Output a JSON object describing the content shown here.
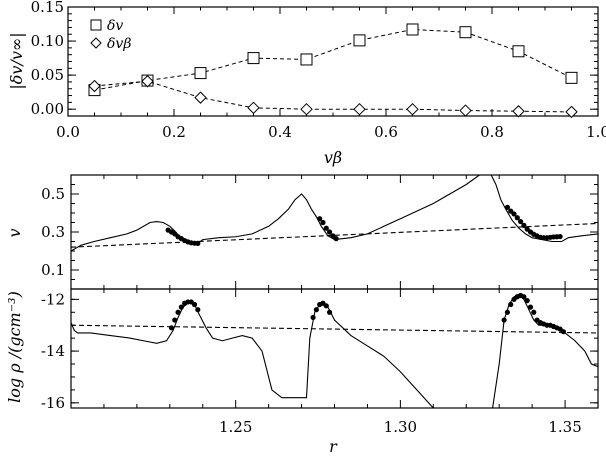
{
  "chart_data": [
    {
      "type": "scatter",
      "panel": "top",
      "xlabel": "vβ",
      "ylabel": "|δv/v∞|",
      "xlim": [
        0.0,
        1.0
      ],
      "ylim": [
        -0.01,
        0.15
      ],
      "x_ticks": [
        0.0,
        0.2,
        0.4,
        0.6,
        0.8,
        1.0
      ],
      "x_tick_labels": [
        "0.0",
        "0.2",
        "0.4",
        "0.6",
        "0.8",
        "1.0"
      ],
      "y_ticks": [
        0.0,
        0.05,
        0.1,
        0.15
      ],
      "y_tick_labels": [
        "0.00",
        "0.05",
        "0.10",
        "0.15"
      ],
      "legend_position": "top-left",
      "series": [
        {
          "name": "δv",
          "marker": "square",
          "line": "dashed",
          "x": [
            0.05,
            0.15,
            0.25,
            0.35,
            0.45,
            0.55,
            0.65,
            0.75,
            0.85,
            0.95
          ],
          "y": [
            0.028,
            0.042,
            0.053,
            0.075,
            0.073,
            0.101,
            0.117,
            0.113,
            0.085,
            0.046
          ]
        },
        {
          "name": "δvβ",
          "marker": "diamond",
          "line": "dashed",
          "x": [
            0.05,
            0.15,
            0.25,
            0.35,
            0.45,
            0.55,
            0.65,
            0.75,
            0.85,
            0.95
          ],
          "y": [
            0.034,
            0.041,
            0.017,
            0.002,
            0.0,
            0.0,
            0.0,
            -0.002,
            -0.003,
            -0.004
          ]
        }
      ]
    },
    {
      "type": "line",
      "panel": "middle",
      "xlabel": "",
      "ylabel": "v",
      "xlim": [
        1.2,
        1.36
      ],
      "ylim": [
        0.0,
        0.6
      ],
      "y_ticks": [
        0.1,
        0.3,
        0.5
      ],
      "y_tick_labels": [
        "0.1",
        "0.3",
        "0.5"
      ],
      "series": [
        {
          "style": "solid",
          "x": [
            1.2,
            1.203,
            1.207,
            1.212,
            1.217,
            1.22,
            1.224,
            1.226,
            1.228,
            1.23,
            1.2315,
            1.233,
            1.235,
            1.237,
            1.2385,
            1.24,
            1.245,
            1.25,
            1.255,
            1.26,
            1.263,
            1.266,
            1.268,
            1.27,
            1.2715,
            1.273,
            1.2745,
            1.276,
            1.278,
            1.28,
            1.285,
            1.29,
            1.295,
            1.3,
            1.305,
            1.31,
            1.315,
            1.32,
            1.324,
            1.327,
            1.329,
            1.3305,
            1.332,
            1.334,
            1.336,
            1.338,
            1.34,
            1.343,
            1.346,
            1.349,
            1.351,
            1.355,
            1.36
          ],
          "y": [
            0.2,
            0.23,
            0.25,
            0.27,
            0.29,
            0.31,
            0.35,
            0.355,
            0.35,
            0.33,
            0.305,
            0.275,
            0.25,
            0.24,
            0.24,
            0.26,
            0.27,
            0.275,
            0.29,
            0.33,
            0.37,
            0.42,
            0.47,
            0.5,
            0.47,
            0.42,
            0.38,
            0.33,
            0.28,
            0.26,
            0.27,
            0.29,
            0.33,
            0.37,
            0.41,
            0.45,
            0.5,
            0.55,
            0.6,
            0.62,
            0.55,
            0.47,
            0.42,
            0.36,
            0.32,
            0.29,
            0.27,
            0.26,
            0.25,
            0.25,
            0.27,
            0.28,
            0.29
          ]
        },
        {
          "style": "dashed",
          "x": [
            1.2,
            1.36
          ],
          "y": [
            0.22,
            0.345
          ]
        }
      ],
      "markers": [
        {
          "x": [
            1.2295,
            1.2305,
            1.2315,
            1.2325,
            1.2335,
            1.2345,
            1.2355,
            1.2365,
            1.2375,
            1.2385
          ],
          "y": [
            0.31,
            0.3,
            0.29,
            0.275,
            0.265,
            0.255,
            0.248,
            0.243,
            0.241,
            0.24
          ]
        },
        {
          "x": [
            1.2755,
            1.2765,
            1.2775,
            1.2785,
            1.2795,
            1.2805
          ],
          "y": [
            0.37,
            0.35,
            0.32,
            0.3,
            0.28,
            0.265
          ]
        },
        {
          "x": [
            1.3325,
            1.3335,
            1.3345,
            1.3355,
            1.3365,
            1.3375,
            1.3385,
            1.3395,
            1.3405,
            1.3415,
            1.3425,
            1.3435,
            1.3445,
            1.3455,
            1.3465,
            1.3475,
            1.3485
          ],
          "y": [
            0.43,
            0.41,
            0.395,
            0.375,
            0.355,
            0.335,
            0.315,
            0.3,
            0.288,
            0.28,
            0.272,
            0.27,
            0.27,
            0.272,
            0.274,
            0.275,
            0.276
          ]
        }
      ]
    },
    {
      "type": "line",
      "panel": "bottom",
      "xlabel": "r",
      "ylabel": "log ρ /(gcm⁻³)",
      "xlim": [
        1.2,
        1.36
      ],
      "ylim": [
        -16.2,
        -11.6
      ],
      "x_ticks": [
        1.25,
        1.3,
        1.35
      ],
      "x_tick_labels": [
        "1.25",
        "1.30",
        "1.35"
      ],
      "y_ticks": [
        -16,
        -14,
        -12
      ],
      "y_tick_labels": [
        "-16",
        "-14",
        "-12"
      ],
      "series": [
        {
          "style": "solid",
          "x": [
            1.2,
            1.201,
            1.202,
            1.206,
            1.212,
            1.218,
            1.222,
            1.226,
            1.229,
            1.231,
            1.2325,
            1.234,
            1.236,
            1.2375,
            1.239,
            1.241,
            1.243,
            1.246,
            1.249,
            1.252,
            1.255,
            1.258,
            1.261,
            1.264,
            1.267,
            1.2715,
            1.2725,
            1.274,
            1.2755,
            1.2765,
            1.278,
            1.28,
            1.285,
            1.29,
            1.295,
            1.3,
            1.305,
            1.31,
            1.315,
            1.32,
            1.325,
            1.328,
            1.33,
            1.3315,
            1.333,
            1.3345,
            1.336,
            1.3375,
            1.339,
            1.3405,
            1.342,
            1.344,
            1.347,
            1.35,
            1.353,
            1.356,
            1.358,
            1.36
          ],
          "y": [
            -12.9,
            -13.2,
            -13.3,
            -13.3,
            -13.4,
            -13.5,
            -13.6,
            -13.7,
            -13.6,
            -13.2,
            -12.7,
            -12.3,
            -12.1,
            -12.2,
            -12.6,
            -13.1,
            -13.5,
            -13.6,
            -13.5,
            -13.4,
            -13.5,
            -14.0,
            -15.5,
            -15.8,
            -15.8,
            -15.8,
            -13.5,
            -12.5,
            -12.2,
            -12.1,
            -12.3,
            -12.8,
            -13.4,
            -13.8,
            -14.2,
            -14.8,
            -15.5,
            -16.2,
            -16.3,
            -16.3,
            -16.3,
            -16.2,
            -14.5,
            -12.8,
            -12.2,
            -11.9,
            -11.8,
            -12.0,
            -12.4,
            -12.8,
            -13.0,
            -13.0,
            -13.1,
            -13.3,
            -13.6,
            -14.0,
            -14.5,
            -14.6
          ]
        },
        {
          "style": "dashed",
          "x": [
            1.2,
            1.36
          ],
          "y": [
            -13.0,
            -13.3
          ]
        }
      ],
      "markers": [
        {
          "x": [
            1.2305,
            1.2315,
            1.2325,
            1.2335,
            1.2345,
            1.2355,
            1.2365,
            1.2375,
            1.2385
          ],
          "y": [
            -13.1,
            -12.8,
            -12.5,
            -12.3,
            -12.15,
            -12.1,
            -12.1,
            -12.2,
            -12.4
          ]
        },
        {
          "x": [
            1.2735,
            1.2745,
            1.2755,
            1.2765,
            1.2775,
            1.2785
          ],
          "y": [
            -12.7,
            -12.4,
            -12.2,
            -12.15,
            -12.25,
            -12.5
          ]
        },
        {
          "x": [
            1.3315,
            1.3325,
            1.3335,
            1.3345,
            1.3355,
            1.3365,
            1.3375,
            1.3385,
            1.3395,
            1.3405,
            1.3415,
            1.3425,
            1.3435,
            1.3445,
            1.3455,
            1.3465,
            1.3475,
            1.3485,
            1.3495
          ],
          "y": [
            -12.8,
            -12.5,
            -12.2,
            -12.0,
            -11.9,
            -11.85,
            -11.9,
            -12.05,
            -12.3,
            -12.5,
            -12.8,
            -12.9,
            -12.95,
            -13.0,
            -13.0,
            -13.05,
            -13.1,
            -13.15,
            -13.25
          ]
        }
      ]
    }
  ]
}
